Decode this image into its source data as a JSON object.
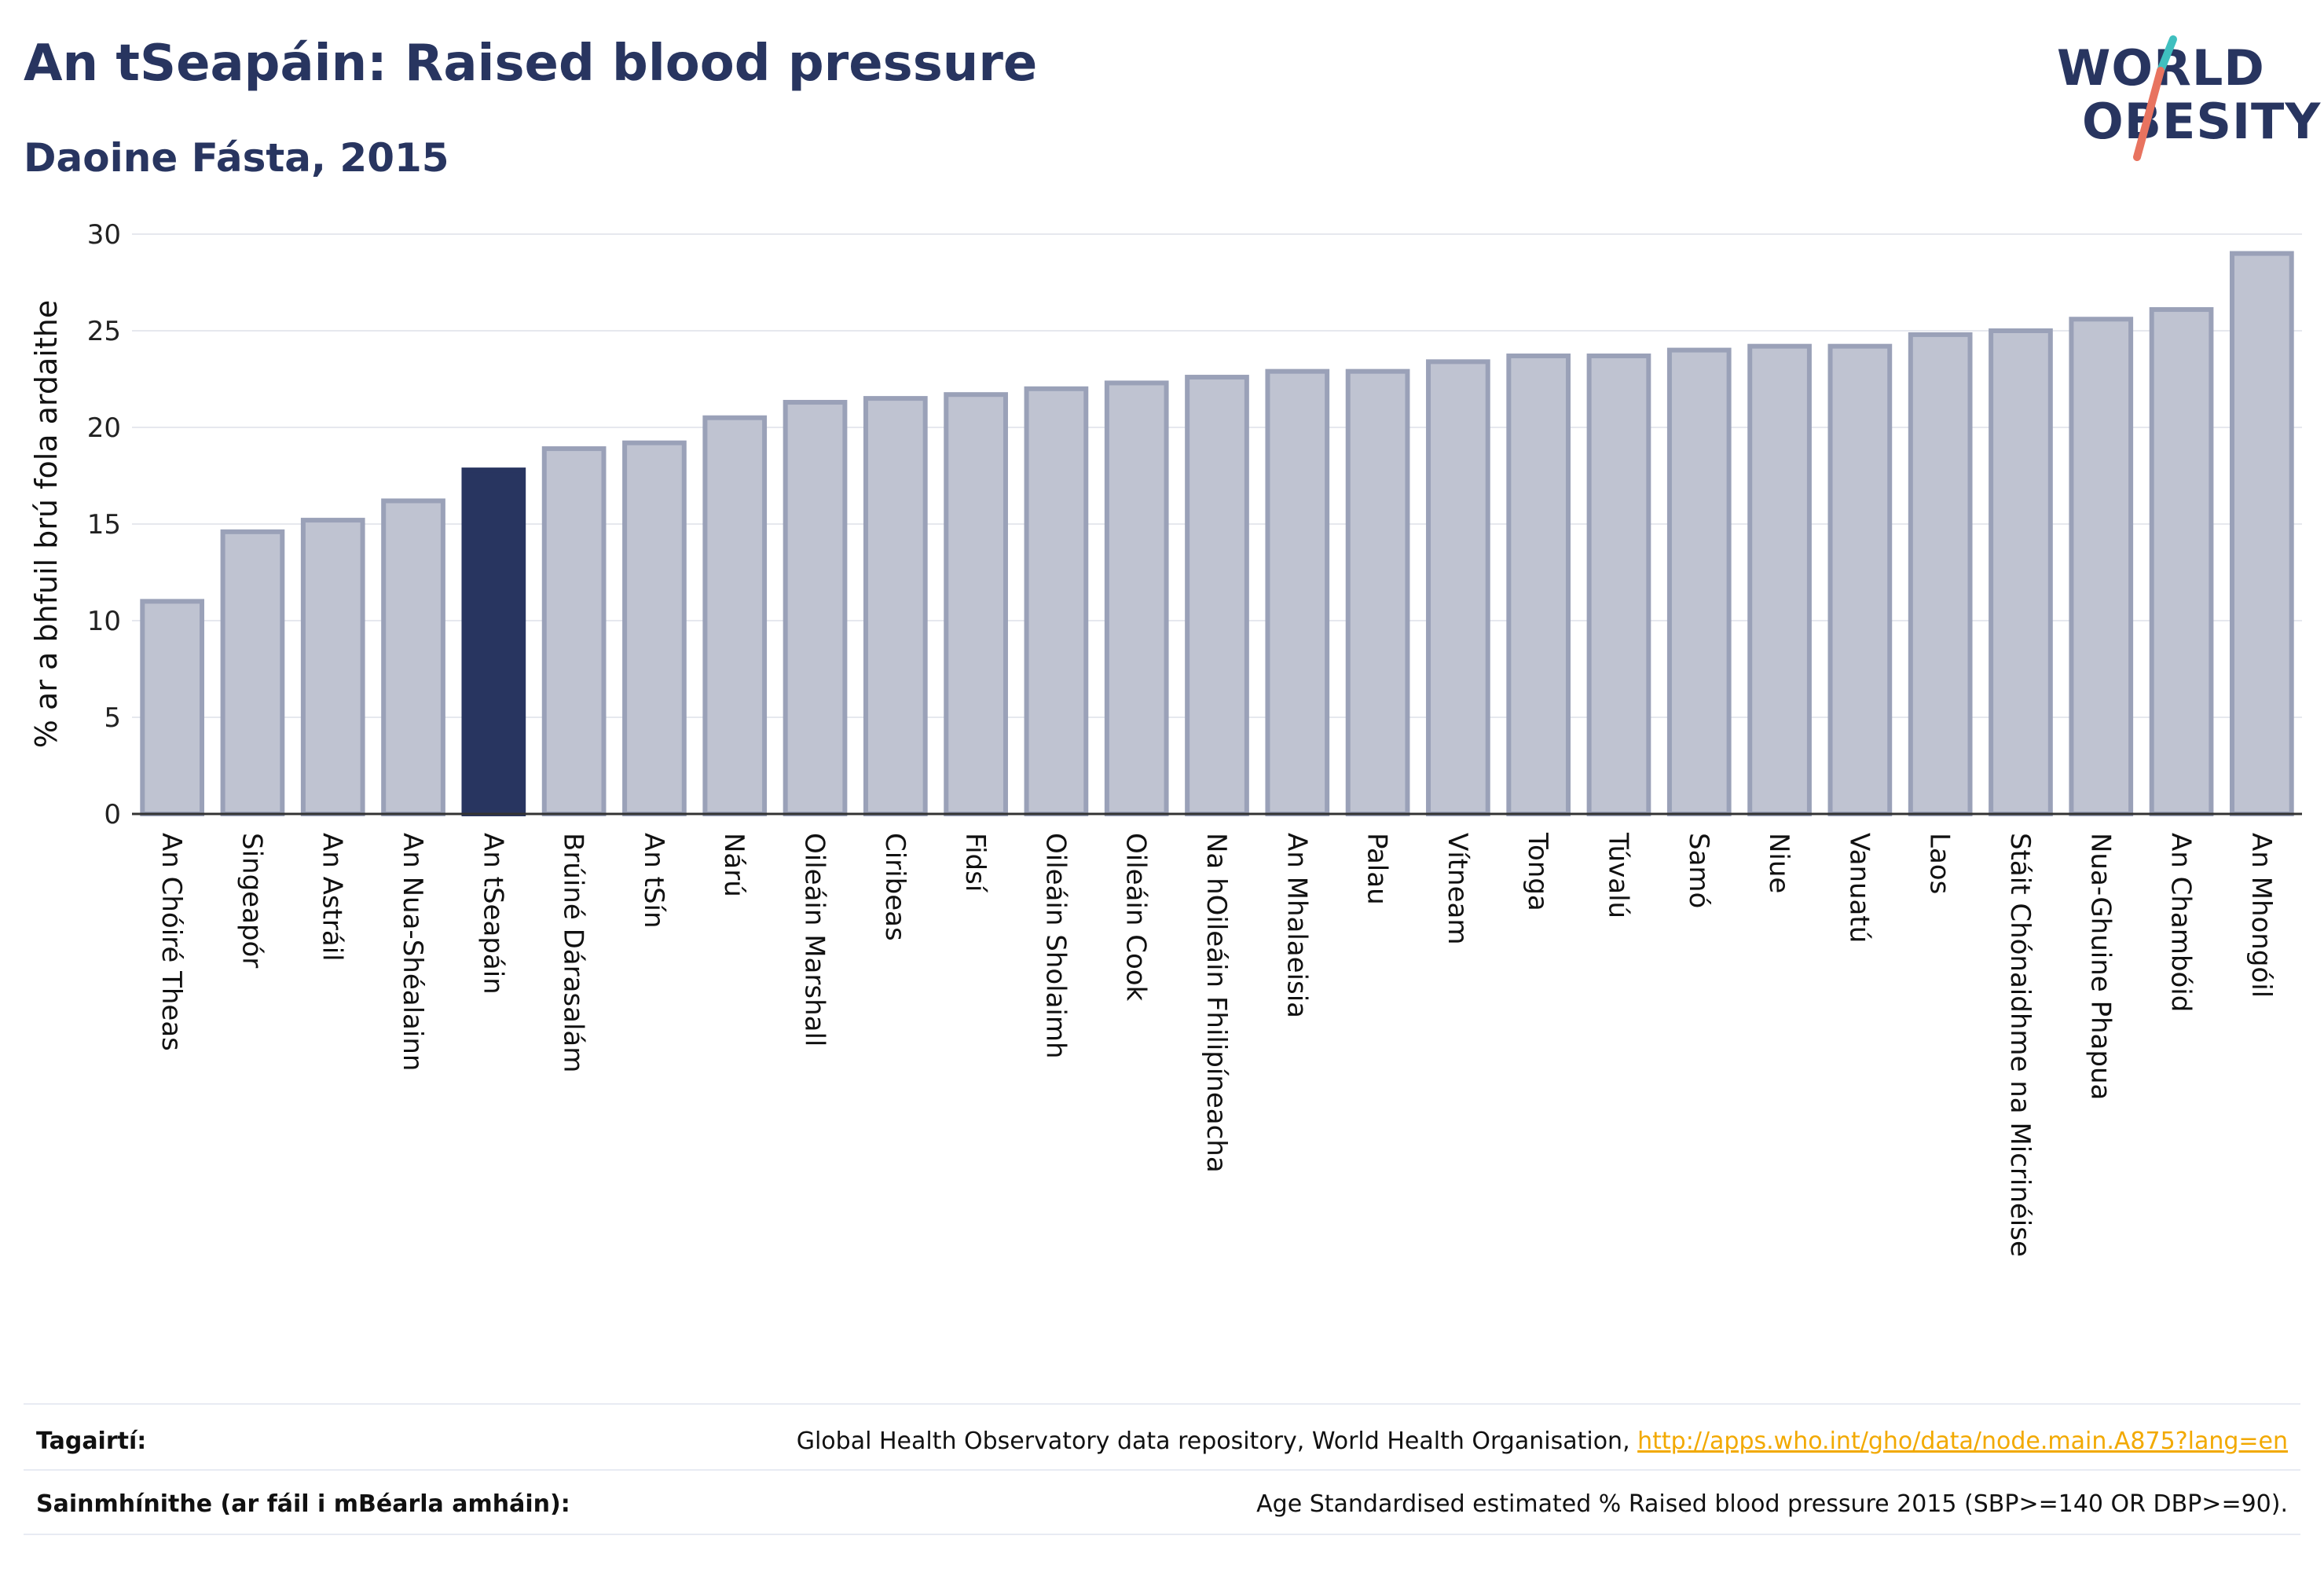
{
  "title": "An tSeapáin: Raised blood pressure",
  "subtitle": "Daoine Fásta, 2015",
  "logo": {
    "line1": "WORLD",
    "line2": "OBESITY",
    "accent_teal": "#3fbfbf",
    "accent_coral": "#e8735f"
  },
  "colors": {
    "bar": "#bfc3d1",
    "bar_stroke": "#9aa1b8",
    "highlight": "#283560",
    "grid": "#e6e8ee",
    "axis": "#333333"
  },
  "chart_data": {
    "type": "bar",
    "ylabel": "% ar a bhfuil brú fola ardaithe",
    "xlabel": "",
    "ylim": [
      0,
      30
    ],
    "yticks": [
      0,
      5,
      10,
      15,
      20,
      25,
      30
    ],
    "grid": true,
    "highlight": "An tSeapáin",
    "categories": [
      "An Chóiré Theas",
      "Singeapór",
      "An Astráil",
      "An Nua-Shéalainn",
      "An tSeapáin",
      "Brúiné Dárasalám",
      "An tSín",
      "Nárú",
      "Oileáin Marshall",
      "Ciribeas",
      "Fidsí",
      "Oileáin Sholaimh",
      "Oileáin Cook",
      "Na hOileáin Fhilipíneacha",
      "An Mhalaeisia",
      "Palau",
      "Vítneam",
      "Tonga",
      "Túvalú",
      "Samó",
      "Niue",
      "Vanuatú",
      "Laos",
      "Stáit Chónaidhme na Micrinéise",
      "Nua-Ghuine Phapua",
      "An Chambóid",
      "An Mhongóil"
    ],
    "values": [
      11.0,
      14.6,
      15.2,
      16.2,
      17.8,
      18.9,
      19.2,
      20.5,
      21.3,
      21.5,
      21.7,
      22.0,
      22.3,
      22.6,
      22.9,
      22.9,
      23.4,
      23.7,
      23.7,
      24.0,
      24.2,
      24.2,
      24.8,
      25.0,
      25.6,
      26.1,
      29.0
    ]
  },
  "footer": {
    "references_label": "Tagairtí:",
    "references_text": "Global Health Observatory data repository, World Health Organisation, ",
    "references_link": "http://apps.who.int/gho/data/node.main.A875?lang=en",
    "definitions_label": "Sainmhínithe (ar fáil i mBéarla amháin):",
    "definitions_text": "Age Standardised estimated % Raised blood pressure 2015 (SBP>=140 OR DBP>=90)."
  }
}
